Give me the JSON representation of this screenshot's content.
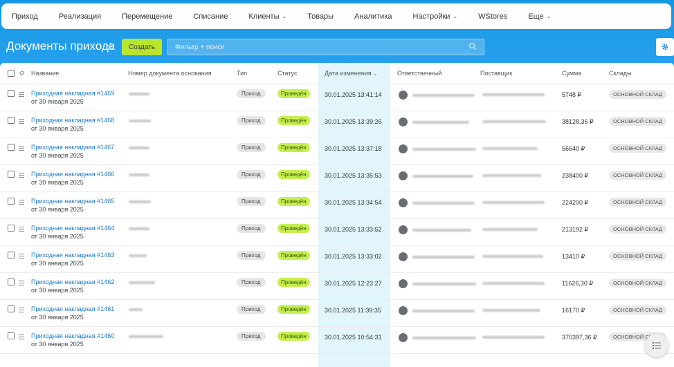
{
  "nav": {
    "items": [
      {
        "label": "Приход",
        "has_dropdown": false
      },
      {
        "label": "Реализация",
        "has_dropdown": false
      },
      {
        "label": "Перемещение",
        "has_dropdown": false
      },
      {
        "label": "Списание",
        "has_dropdown": false
      },
      {
        "label": "Клиенты",
        "has_dropdown": true
      },
      {
        "label": "Товары",
        "has_dropdown": false
      },
      {
        "label": "Аналитика",
        "has_dropdown": false
      },
      {
        "label": "Настройки",
        "has_dropdown": true
      },
      {
        "label": "WStores",
        "has_dropdown": false
      },
      {
        "label": "Еще",
        "has_dropdown": true
      }
    ]
  },
  "header": {
    "title": "Документы прихода",
    "create_label": "Создать",
    "search_placeholder": "Фильтр + поиск"
  },
  "table": {
    "columns": {
      "name": "Название",
      "base_doc": "Номер документа основания",
      "type": "Тип",
      "status": "Статус",
      "changed": "Дата изменения",
      "responsible": "Ответственный",
      "supplier": "Поставщик",
      "amount": "Сумма",
      "warehouses": "Склады"
    },
    "rows": [
      {
        "name": "Приходная накладная #1469",
        "date": "от 30 января 2025",
        "type": "Приход",
        "status": "Проведён",
        "changed": "30.01.2025 13:41:14",
        "amount": "5748 ₽",
        "warehouse": "ОСНОВНОЙ СКЛАД"
      },
      {
        "name": "Приходная накладная #1468",
        "date": "от 30 января 2025",
        "type": "Приход",
        "status": "Проведён",
        "changed": "30.01.2025 13:39:26",
        "amount": "38128,36 ₽",
        "warehouse": "ОСНОВНОЙ СКЛАД"
      },
      {
        "name": "Приходная накладная #1467",
        "date": "от 30 января 2025",
        "type": "Приход",
        "status": "Проведён",
        "changed": "30.01.2025 13:37:18",
        "amount": "56640 ₽",
        "warehouse": "ОСНОВНОЙ СКЛАД"
      },
      {
        "name": "Приходная накладная #1466",
        "date": "от 30 января 2025",
        "type": "Приход",
        "status": "Проведён",
        "changed": "30.01.2025 13:35:53",
        "amount": "238400 ₽",
        "warehouse": "ОСНОВНОЙ СКЛАД"
      },
      {
        "name": "Приходная накладная #1465",
        "date": "от 30 января 2025",
        "type": "Приход",
        "status": "Проведён",
        "changed": "30.01.2025 13:34:54",
        "amount": "224200 ₽",
        "warehouse": "ОСНОВНОЙ СКЛАД"
      },
      {
        "name": "Приходная накладная #1464",
        "date": "от 30 января 2025",
        "type": "Приход",
        "status": "Проведён",
        "changed": "30.01.2025 13:33:52",
        "amount": "213192 ₽",
        "warehouse": "ОСНОВНОЙ СКЛАД"
      },
      {
        "name": "Приходная накладная #1463",
        "date": "от 30 января 2025",
        "type": "Приход",
        "status": "Проведён",
        "changed": "30.01.2025 13:33:02",
        "amount": "13410 ₽",
        "warehouse": "ОСНОВНОЙ СКЛАД"
      },
      {
        "name": "Приходная накладная #1462",
        "date": "от 30 января 2025",
        "type": "Приход",
        "status": "Проведён",
        "changed": "30.01.2025 12:23:27",
        "amount": "11626,30 ₽",
        "warehouse": "ОСНОВНОЙ СКЛАД"
      },
      {
        "name": "Приходная накладная #1461",
        "date": "от 30 января 2025",
        "type": "Приход",
        "status": "Проведён",
        "changed": "30.01.2025 11:39:35",
        "amount": "16170 ₽",
        "warehouse": "ОСНОВНОЙ СКЛАД"
      },
      {
        "name": "Приходная накладная #1460",
        "date": "от 30 января 2025",
        "type": "Приход",
        "status": "Проведён",
        "changed": "30.01.2025 10:54:31",
        "amount": "370397,36 ₽",
        "warehouse": "ОСНОВНОЙ СКЛАД"
      }
    ]
  }
}
